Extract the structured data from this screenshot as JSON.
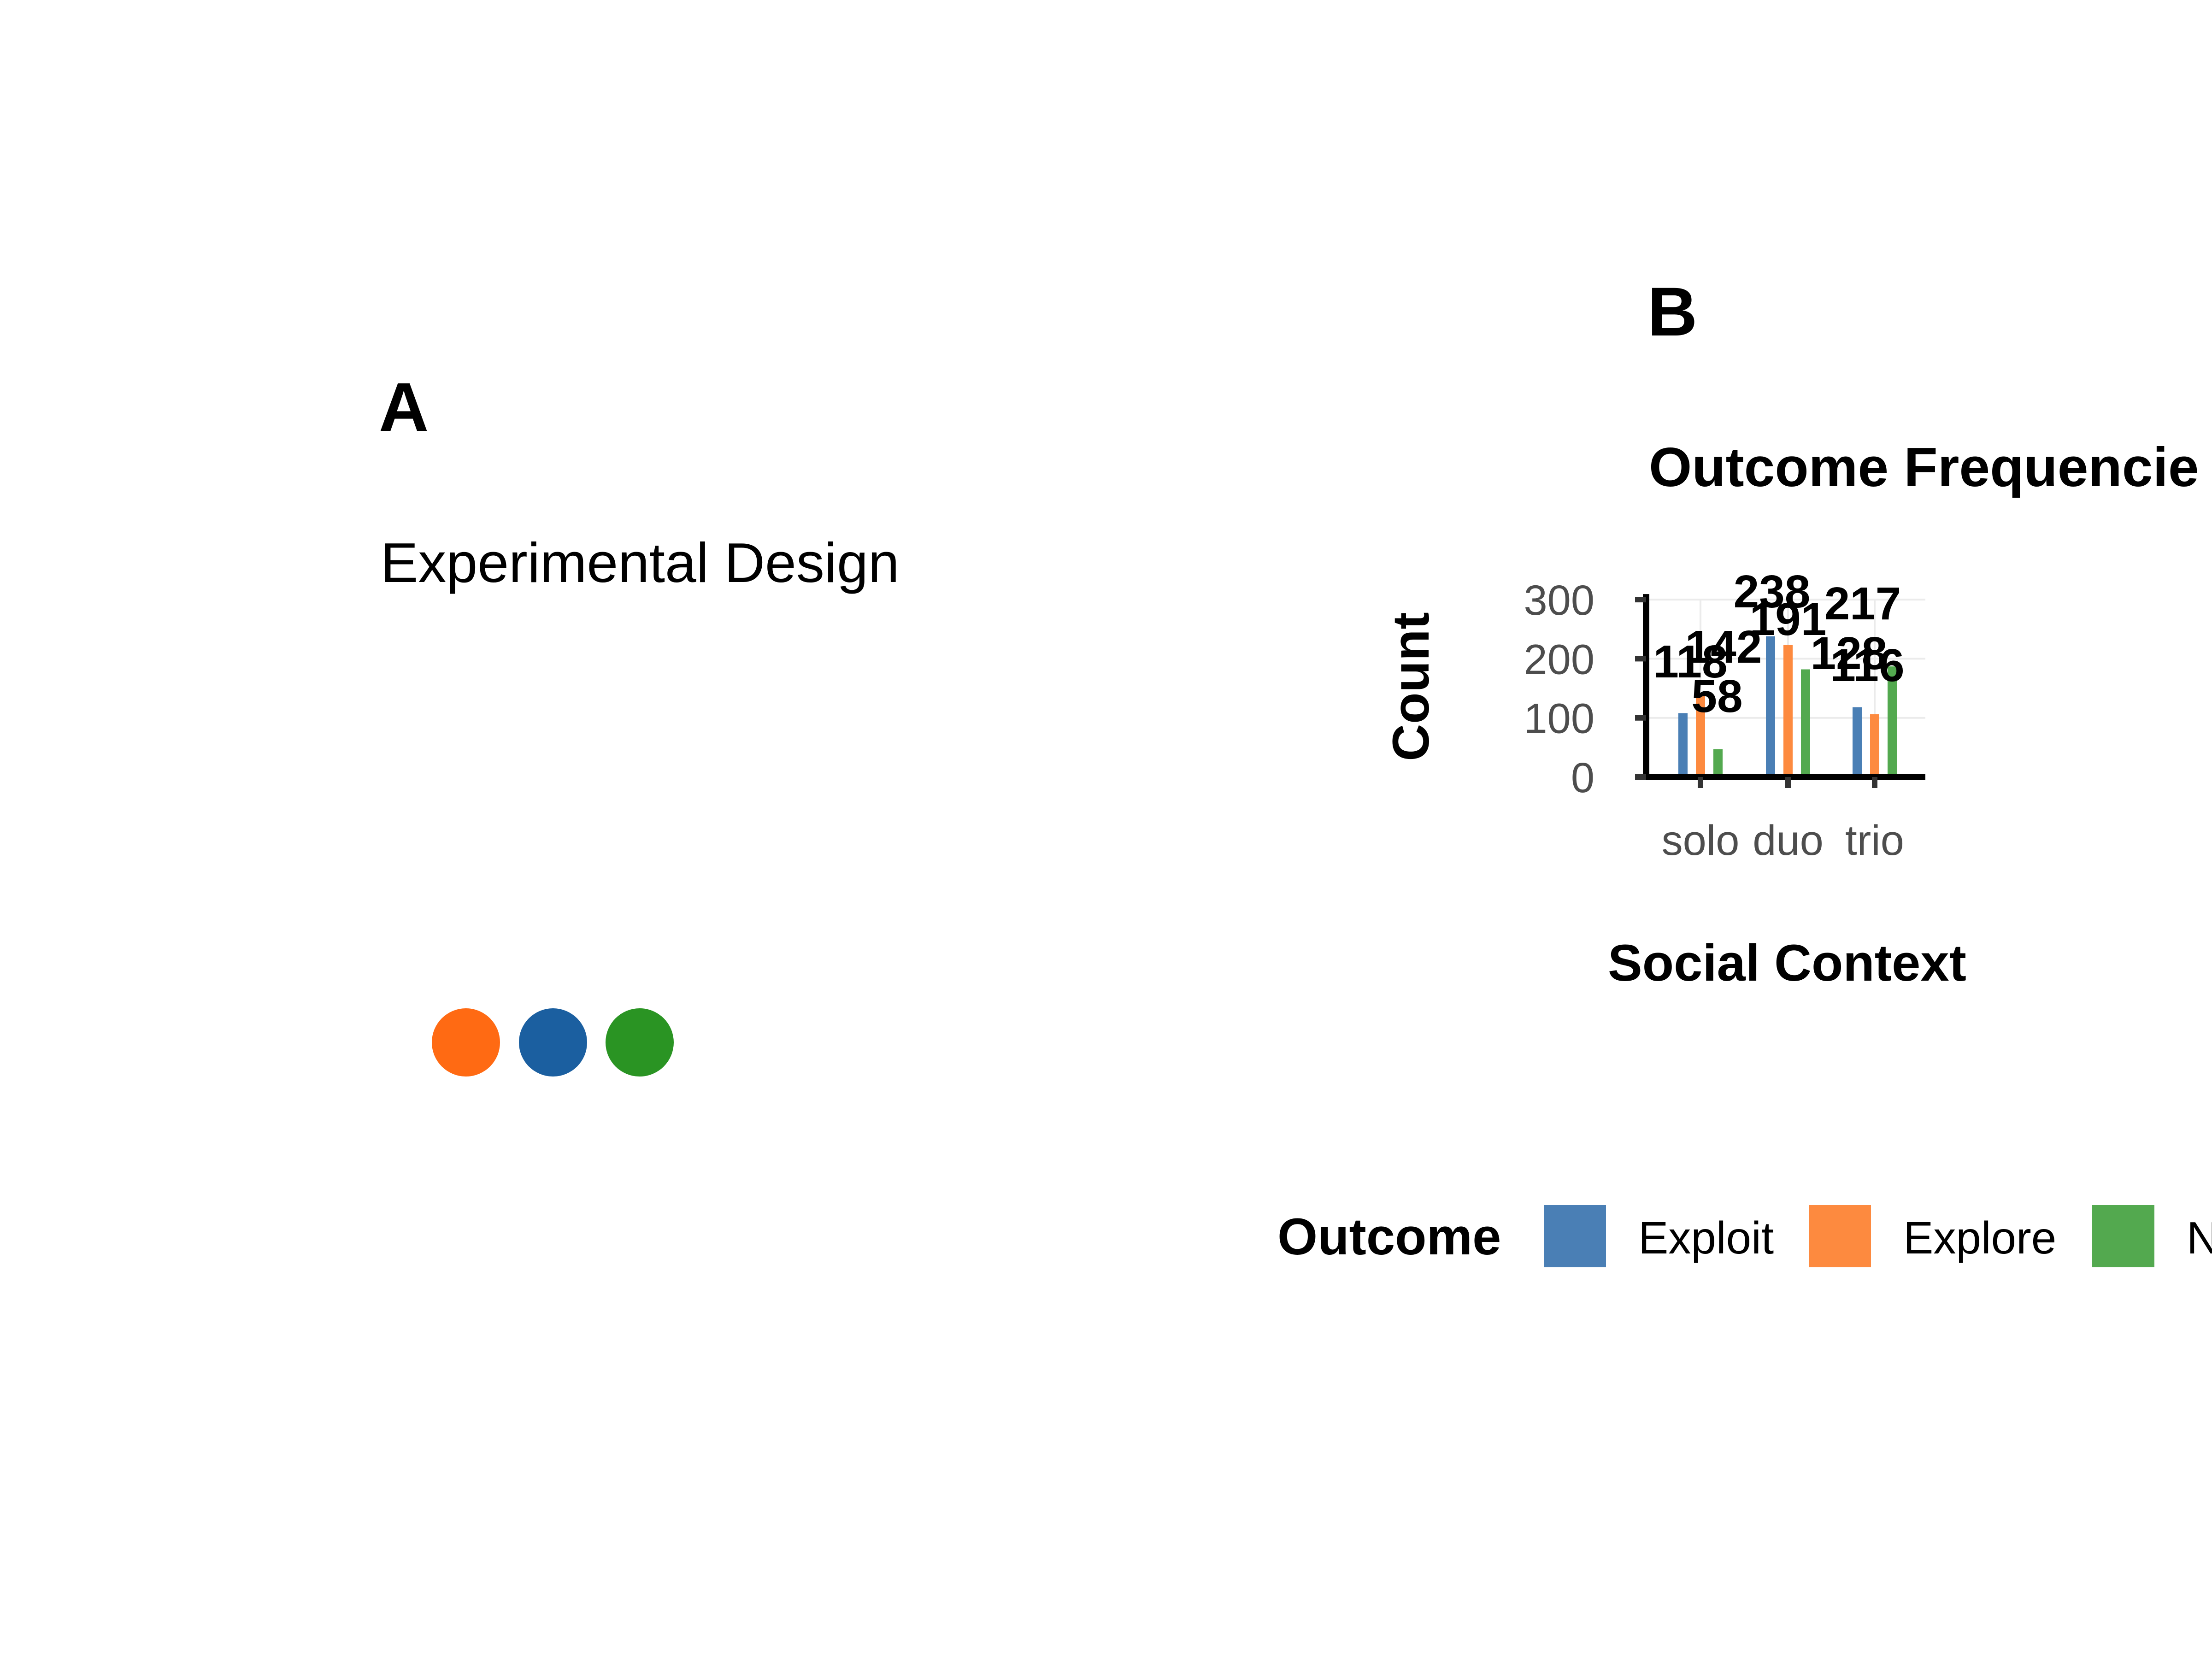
{
  "panel_a": {
    "label": "A",
    "subtitle": "Experimental Design",
    "icons": [
      {
        "name": "orange-circle-icon",
        "color": "#ff6a13"
      },
      {
        "name": "blue-circle-icon",
        "color": "#1b5fa0"
      },
      {
        "name": "green-circle-icon",
        "color": "#2a9423"
      }
    ]
  },
  "panel_b": {
    "label": "B"
  },
  "chart_data": {
    "type": "bar",
    "title": "Outcome Frequencie",
    "xlabel": "Social Context",
    "ylabel": "Count",
    "categories": [
      "solo",
      "duo",
      "trio"
    ],
    "ylim": [
      0,
      300
    ],
    "yticks": [
      0,
      100,
      200,
      300
    ],
    "grid": true,
    "legend_title": "Outcome",
    "legend_position": "bottom",
    "series": [
      {
        "name": "Exploit",
        "color": "#4a7fb5",
        "values": [
          108,
          238,
          118
        ]
      },
      {
        "name": "Explore",
        "color": "#fd8a3f",
        "values": [
          142,
          223,
          106
        ]
      },
      {
        "name": "N",
        "color": "#53a94f",
        "values": [
          47,
          182,
          187
        ]
      }
    ],
    "data_labels": [
      {
        "text": "118"
      },
      {
        "text": "142"
      },
      {
        "text": "58"
      },
      {
        "text": "238"
      },
      {
        "text": "191"
      },
      {
        "text": "217"
      },
      {
        "text": "128"
      },
      {
        "text": "116"
      }
    ]
  }
}
